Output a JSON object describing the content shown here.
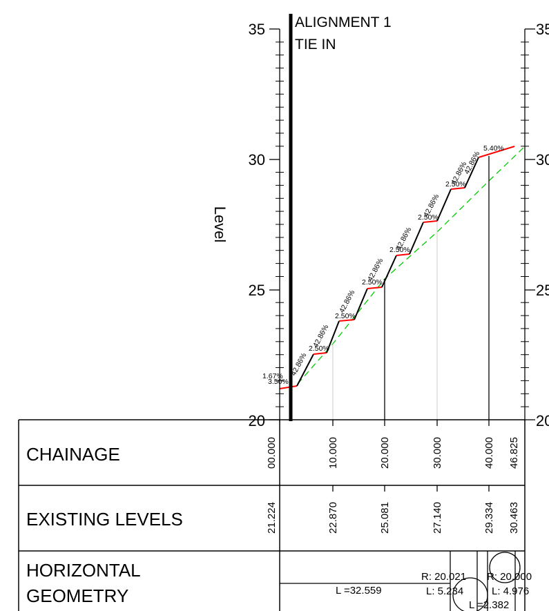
{
  "profile": {
    "y_axis_label": "Level",
    "y_ticks": [
      "35",
      "30",
      "25",
      "20"
    ],
    "y_ticks_right": [
      "35",
      "30",
      "25",
      "20"
    ],
    "tie_in": {
      "line1": "ALIGNMENT 1",
      "line2": "TIE IN"
    },
    "grades": [
      "1.67%",
      "3.50%",
      "42.86%",
      "42.86%",
      "2.50%",
      "42.86%",
      "2.50%",
      "42.86%",
      "2.50%",
      "42.86%",
      "2.50%",
      "42.86%",
      "2.50%",
      "42.86%",
      "2.50%",
      "42.86%",
      "5.40%"
    ],
    "colors": {
      "design": "#ff0000",
      "existing": "#00cc00",
      "steps": "#000000"
    }
  },
  "table": {
    "chainage": {
      "label": "CHAINAGE",
      "values": [
        "00.000",
        "10.000",
        "20.000",
        "30.000",
        "40.000",
        "46.825"
      ]
    },
    "existing_levels": {
      "label": "EXISTING LEVELS",
      "values": [
        "21.224",
        "22.870",
        "25.081",
        "27.140",
        "29.334",
        "30.463"
      ]
    },
    "horizontal_geometry": {
      "label_line1": "HORIZONTAL",
      "label_line2": "GEOMETRY",
      "straight": "L =32.559",
      "curve1_r": "R: 20.021",
      "curve1_l": "L: 5.234",
      "curve2_r": "R: 20.000",
      "curve2_l": "L: 4.976",
      "spiral_l": "L =2.382"
    }
  }
}
